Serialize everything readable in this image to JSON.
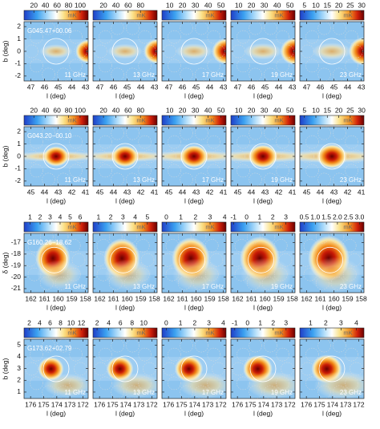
{
  "chart_data": [
    {
      "type": "heatmap",
      "title": "G045.47+00.06",
      "x_label": "l (deg)",
      "y_label": "b (deg)",
      "colorbar_label": "mK",
      "xlim": [
        47.5,
        42.8
      ],
      "xticks": [
        47,
        46,
        45,
        44,
        43
      ],
      "ylim": [
        -2.4,
        2.4
      ],
      "yticks": [
        2,
        1,
        0,
        -1,
        -2
      ],
      "panels": [
        {
          "label": "11 GHz",
          "clim": [
            3,
            114
          ],
          "cticks": [
            20,
            40,
            60,
            80,
            100
          ]
        },
        {
          "label": "13 GHz",
          "clim": [
            3,
            107
          ],
          "cticks": [
            20,
            40,
            60,
            80
          ]
        },
        {
          "label": "17 GHz",
          "clim": [
            4,
            54
          ],
          "cticks": [
            10,
            20,
            30,
            40,
            50
          ]
        },
        {
          "label": "19 GHz",
          "clim": [
            4,
            54
          ],
          "cticks": [
            10,
            20,
            30,
            40,
            50
          ]
        },
        {
          "label": "23 GHz",
          "clim": [
            3,
            31
          ],
          "cticks": [
            5,
            10,
            15,
            20,
            25,
            30
          ]
        }
      ]
    },
    {
      "type": "heatmap",
      "title": "G043.20−00.10",
      "x_label": "l (deg)",
      "y_label": "b (deg)",
      "colorbar_label": "mK",
      "xlim": [
        45.5,
        40.8
      ],
      "xticks": [
        45,
        44,
        43,
        42,
        41
      ],
      "ylim": [
        -2.4,
        2.4
      ],
      "yticks": [
        2,
        1,
        0,
        -1,
        -2
      ],
      "panels": [
        {
          "label": "11 GHz",
          "clim": [
            3,
            114
          ],
          "cticks": [
            20,
            40,
            60,
            80,
            100
          ]
        },
        {
          "label": "13 GHz",
          "clim": [
            3,
            107
          ],
          "cticks": [
            20,
            40,
            60,
            80
          ]
        },
        {
          "label": "17 GHz",
          "clim": [
            4,
            54
          ],
          "cticks": [
            10,
            20,
            30,
            40,
            50
          ]
        },
        {
          "label": "19 GHz",
          "clim": [
            4,
            54
          ],
          "cticks": [
            10,
            20,
            30,
            40,
            50
          ]
        },
        {
          "label": "23 GHz",
          "clim": [
            3,
            31
          ],
          "cticks": [
            5,
            10,
            15,
            20,
            25,
            30
          ]
        }
      ]
    },
    {
      "type": "heatmap",
      "title": "G160.26−18.62",
      "x_label": "l (deg)",
      "y_label": "δ (deg)",
      "colorbar_label": "mK",
      "xlim": [
        162.5,
        157.8
      ],
      "xticks": [
        162,
        161,
        160,
        159,
        158
      ],
      "ylim": [
        -21.35,
        -16.2
      ],
      "yticks": [
        -17,
        -18,
        -19,
        -20,
        -21
      ],
      "panels": [
        {
          "label": "11 GHz",
          "clim": [
            0.4,
            6.8
          ],
          "cticks": [
            1,
            2,
            3,
            4,
            5,
            6
          ]
        },
        {
          "label": "13 GHz",
          "clim": [
            0.55,
            5.8
          ],
          "cticks": [
            1,
            2,
            3,
            4,
            5
          ]
        },
        {
          "label": "17 GHz",
          "clim": [
            -0.3,
            4.1
          ],
          "cticks": [
            0,
            1,
            2,
            3,
            4
          ]
        },
        {
          "label": "19 GHz",
          "clim": [
            -1.2,
            3.7
          ],
          "cticks": [
            -1,
            0,
            1,
            2,
            3
          ]
        },
        {
          "label": "23 GHz",
          "clim": [
            0.3,
            3.2
          ],
          "cticks": [
            0.5,
            {
              "value": 1.0,
              "label": "1.0"
            },
            1.5,
            {
              "value": 2.0,
              "label": "2.0"
            },
            2.5,
            {
              "value": 3.0,
              "label": "3.0"
            }
          ]
        }
      ]
    },
    {
      "type": "heatmap",
      "title": "G173.62+02.79",
      "x_label": "l (deg)",
      "y_label": "b (deg)",
      "colorbar_label": "mK",
      "xlim": [
        176.5,
        171.6
      ],
      "xticks": [
        176,
        175,
        174,
        173,
        172
      ],
      "ylim": [
        0.45,
        5.5
      ],
      "yticks": [
        5,
        4,
        3,
        2,
        1
      ],
      "panels": [
        {
          "label": "11 GHz",
          "clim": [
            1,
            13.3
          ],
          "cticks": [
            2,
            4,
            6,
            8,
            10,
            12
          ]
        },
        {
          "label": "13 GHz",
          "clim": [
            1.3,
            12.3
          ],
          "cticks": [
            2,
            4,
            6,
            8,
            10
          ]
        },
        {
          "label": "17 GHz",
          "clim": [
            -0.3,
            4.2
          ],
          "cticks": [
            0,
            1,
            2,
            3,
            4
          ]
        },
        {
          "label": "19 GHz",
          "clim": [
            -1.3,
            3.7
          ],
          "cticks": [
            -1,
            0,
            1,
            2,
            3
          ]
        },
        {
          "label": "23 GHz",
          "clim": [
            0.3,
            4.5
          ],
          "cticks": [
            1,
            2,
            3,
            4
          ]
        }
      ]
    }
  ]
}
